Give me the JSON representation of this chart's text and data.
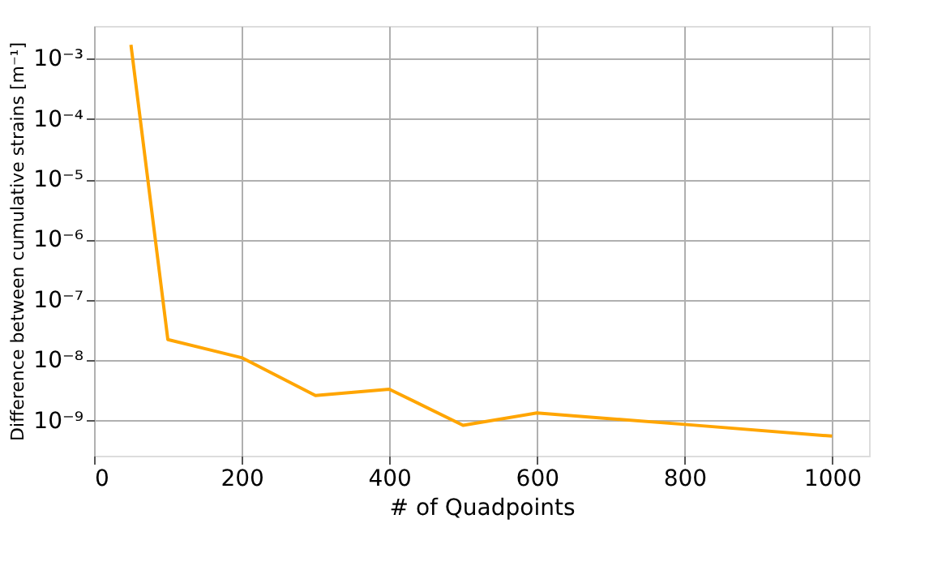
{
  "chart_data": {
    "type": "line",
    "xlabel": "# of Quadpoints",
    "ylabel": "Difference between cumulative strains [m⁻¹]",
    "x": [
      50,
      100,
      200,
      300,
      400,
      500,
      600,
      800,
      1000
    ],
    "series": [
      {
        "color": "#ffa500",
        "values": [
          0.0017,
          2.2e-08,
          1.1e-08,
          2.6e-09,
          3.3e-09,
          8.3e-10,
          1.33e-09,
          8.6e-10,
          5.5e-10
        ]
      }
    ],
    "log": "y",
    "xlim": [
      0,
      1050
    ],
    "xticks": [
      0,
      200,
      400,
      600,
      800,
      1000
    ],
    "ylim": [
      2.6e-10,
      0.0035
    ],
    "yticks": [
      {
        "value": 1e-09,
        "label": "10⁻⁹"
      },
      {
        "value": 1e-08,
        "label": "10⁻⁸"
      },
      {
        "value": 1e-07,
        "label": "10⁻⁷"
      },
      {
        "value": 1e-06,
        "label": "10⁻⁶"
      },
      {
        "value": 1e-05,
        "label": "10⁻⁵"
      },
      {
        "value": 0.0001,
        "label": "10⁻⁴"
      },
      {
        "value": 0.001,
        "label": "10⁻³"
      }
    ],
    "grid": true,
    "marker": "none",
    "line_style": "solid",
    "legend": false
  }
}
